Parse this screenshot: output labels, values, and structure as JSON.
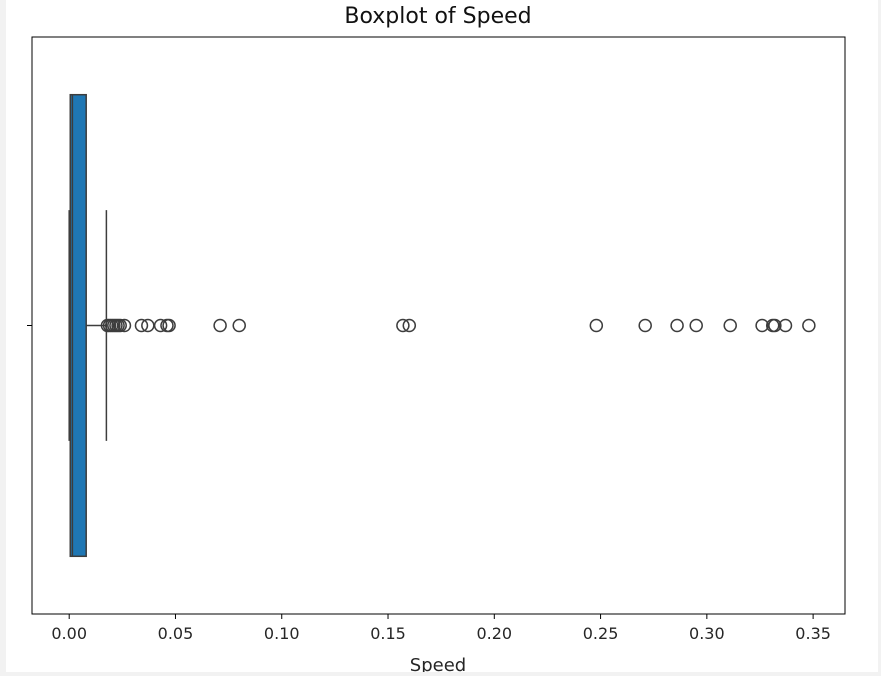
{
  "chart_data": {
    "type": "boxplot",
    "title": "Boxplot of Speed",
    "xlabel": "Speed",
    "ylabel": "",
    "orientation": "horizontal",
    "xlim": [
      -0.0175,
      0.365
    ],
    "x_ticks": [
      0.0,
      0.05,
      0.1,
      0.15,
      0.2,
      0.25,
      0.3,
      0.35
    ],
    "x_tick_labels": [
      "0.00",
      "0.05",
      "0.10",
      "0.15",
      "0.20",
      "0.25",
      "0.30",
      "0.35"
    ],
    "grid": false,
    "box": {
      "whisker_low": 0.0,
      "q1": 0.0005,
      "median": 0.0015,
      "q3": 0.008,
      "whisker_high": 0.0175
    },
    "outliers": [
      0.018,
      0.019,
      0.02,
      0.021,
      0.022,
      0.023,
      0.024,
      0.026,
      0.034,
      0.037,
      0.043,
      0.046,
      0.047,
      0.071,
      0.08,
      0.157,
      0.16,
      0.248,
      0.271,
      0.286,
      0.295,
      0.311,
      0.326,
      0.331,
      0.332,
      0.337,
      0.348
    ],
    "colors": {
      "box_fill": "#1f77b4",
      "line": "#3d3d3d",
      "frame": "#000000"
    }
  }
}
